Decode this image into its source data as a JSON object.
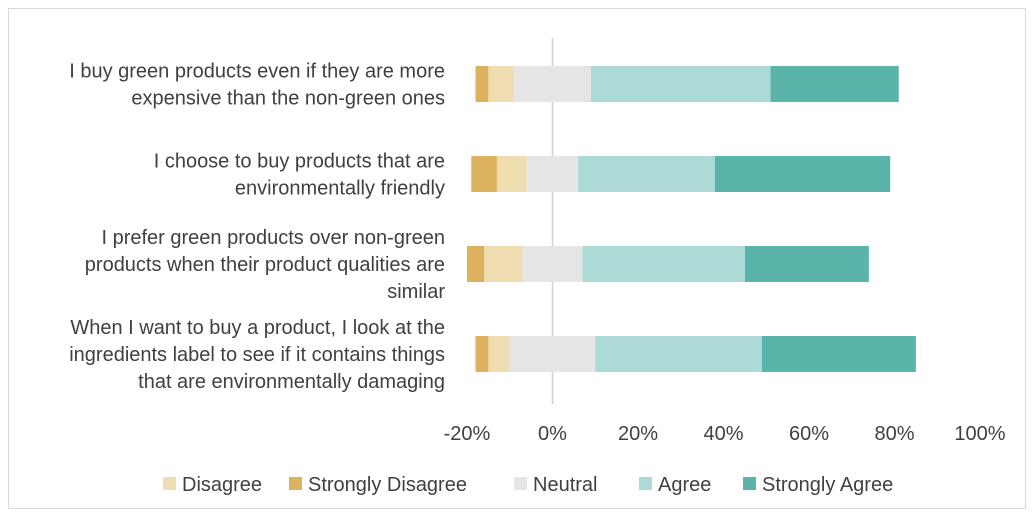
{
  "chart_data": {
    "type": "bar",
    "orientation": "horizontal",
    "stacked": "diverging",
    "title": "",
    "xlabel": "",
    "ylabel": "",
    "xlim": [
      -20,
      100
    ],
    "xticks": [
      "-20%",
      "0%",
      "20%",
      "40%",
      "60%",
      "80%",
      "100%"
    ],
    "grid": false,
    "legend_position": "bottom",
    "categories": [
      [
        "I buy green products even if they are more",
        "expensive than the non-green ones"
      ],
      [
        "I choose to buy products that are",
        "environmentally friendly"
      ],
      [
        "I prefer green products over non-green",
        "products when their product qualities are",
        "similar"
      ],
      [
        "When I want to buy a product, I look at the",
        "ingredients label to see if it contains things",
        "that are environmentally damaging"
      ]
    ],
    "series": [
      {
        "name": "Strongly Disagree",
        "color": "#dcb25e",
        "values": [
          3,
          6,
          4,
          3
        ]
      },
      {
        "name": "Disagree",
        "color": "#f0dcb1",
        "values": [
          6,
          7,
          9,
          5
        ]
      },
      {
        "name": "Neutral",
        "color": "#e5e5e5",
        "values": [
          18,
          12,
          14,
          20
        ]
      },
      {
        "name": "Agree",
        "color": "#acdbd7",
        "values": [
          42,
          32,
          38,
          39
        ]
      },
      {
        "name": "Strongly Agree",
        "color": "#5bb4aa",
        "values": [
          30,
          41,
          29,
          36
        ]
      }
    ],
    "neutral_split": "half-left-half-right",
    "legend_order": [
      "Disagree",
      "Strongly Disagree",
      "Neutral",
      "Agree",
      "Strongly Agree"
    ]
  }
}
